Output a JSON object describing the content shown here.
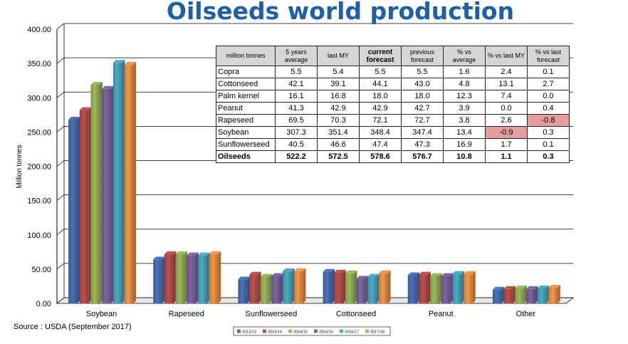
{
  "title": "Oilseeds world production",
  "source": "Source : USDA (September 2017)",
  "chart_data": {
    "type": "bar",
    "title": "Oilseeds world production",
    "ylabel": "Million tonnes",
    "xlabel": "",
    "ylim": [
      0,
      400
    ],
    "yticks": [
      "0.00",
      "50.00",
      "100.00",
      "150.00",
      "200.00",
      "250.00",
      "300.00",
      "350.00",
      "400.00"
    ],
    "categories": [
      "Soybean",
      "Rapeseed",
      "Sunflowerseed",
      "Cottonseed",
      "Peanut",
      "Other"
    ],
    "series": [
      {
        "name": "2012/13",
        "color": "#4a72b8",
        "values": [
          268,
          64,
          35,
          46,
          41,
          20
        ]
      },
      {
        "name": "2013/14",
        "color": "#c0504d",
        "values": [
          282,
          72,
          42,
          45,
          42,
          21
        ]
      },
      {
        "name": "2014/15",
        "color": "#9bbb59",
        "values": [
          319,
          72,
          39,
          44,
          40,
          22
        ]
      },
      {
        "name": "2015/16",
        "color": "#7f65a6",
        "values": [
          313,
          70,
          40,
          36,
          40,
          21
        ]
      },
      {
        "name": "2016/17",
        "color": "#4bacc6",
        "values": [
          351,
          70,
          47,
          39,
          43,
          22
        ]
      },
      {
        "name": "2017/18",
        "color": "#f79646",
        "values": [
          348,
          72,
          47,
          44,
          43,
          23
        ]
      }
    ],
    "legend_position": "bottom",
    "grid": true
  },
  "table": {
    "headers": [
      {
        "text": "million tonnes",
        "bold": false
      },
      {
        "text": "5 years average",
        "bold": false
      },
      {
        "text": "last MY",
        "bold": false
      },
      {
        "text": "current forecast",
        "bold": true
      },
      {
        "text": "previous forecast",
        "bold": false
      },
      {
        "text": "% vs average",
        "bold": false
      },
      {
        "text": "% vs last MY",
        "bold": false
      },
      {
        "text": "% vs last forecast",
        "bold": false
      }
    ],
    "rows": [
      {
        "cells": [
          "Copra",
          "5.5",
          "5.4",
          "5.5",
          "5.5",
          "1.6",
          "2.4",
          "0.1"
        ],
        "highlight": []
      },
      {
        "cells": [
          "Cottonseed",
          "42.1",
          "39.1",
          "44.1",
          "43.0",
          "4.8",
          "13.1",
          "2.7"
        ],
        "highlight": []
      },
      {
        "cells": [
          "Palm kernel",
          "16.1",
          "16.8",
          "18.0",
          "18.0",
          "12.3",
          "7.4",
          "0.0"
        ],
        "highlight": []
      },
      {
        "cells": [
          "Peanut",
          "41.3",
          "42.9",
          "42.9",
          "42.7",
          "3.9",
          "0.0",
          "0.4"
        ],
        "highlight": []
      },
      {
        "cells": [
          "Rapeseed",
          "69.5",
          "70.3",
          "72.1",
          "72.7",
          "3.8",
          "2.6",
          "-0.8"
        ],
        "highlight": [
          7
        ]
      },
      {
        "cells": [
          "Soybean",
          "307.3",
          "351.4",
          "348.4",
          "347.4",
          "13.4",
          "-0.9",
          "0.3"
        ],
        "highlight": [
          6
        ]
      },
      {
        "cells": [
          "Sunflowerseed",
          "40.5",
          "46.6",
          "47.4",
          "47.3",
          "16.9",
          "1.7",
          "0.1"
        ],
        "highlight": []
      },
      {
        "cells": [
          "Oilseeds",
          "522.2",
          "572.5",
          "578.6",
          "576.7",
          "10.8",
          "1.1",
          "0.3"
        ],
        "highlight": [],
        "total": true
      }
    ]
  }
}
